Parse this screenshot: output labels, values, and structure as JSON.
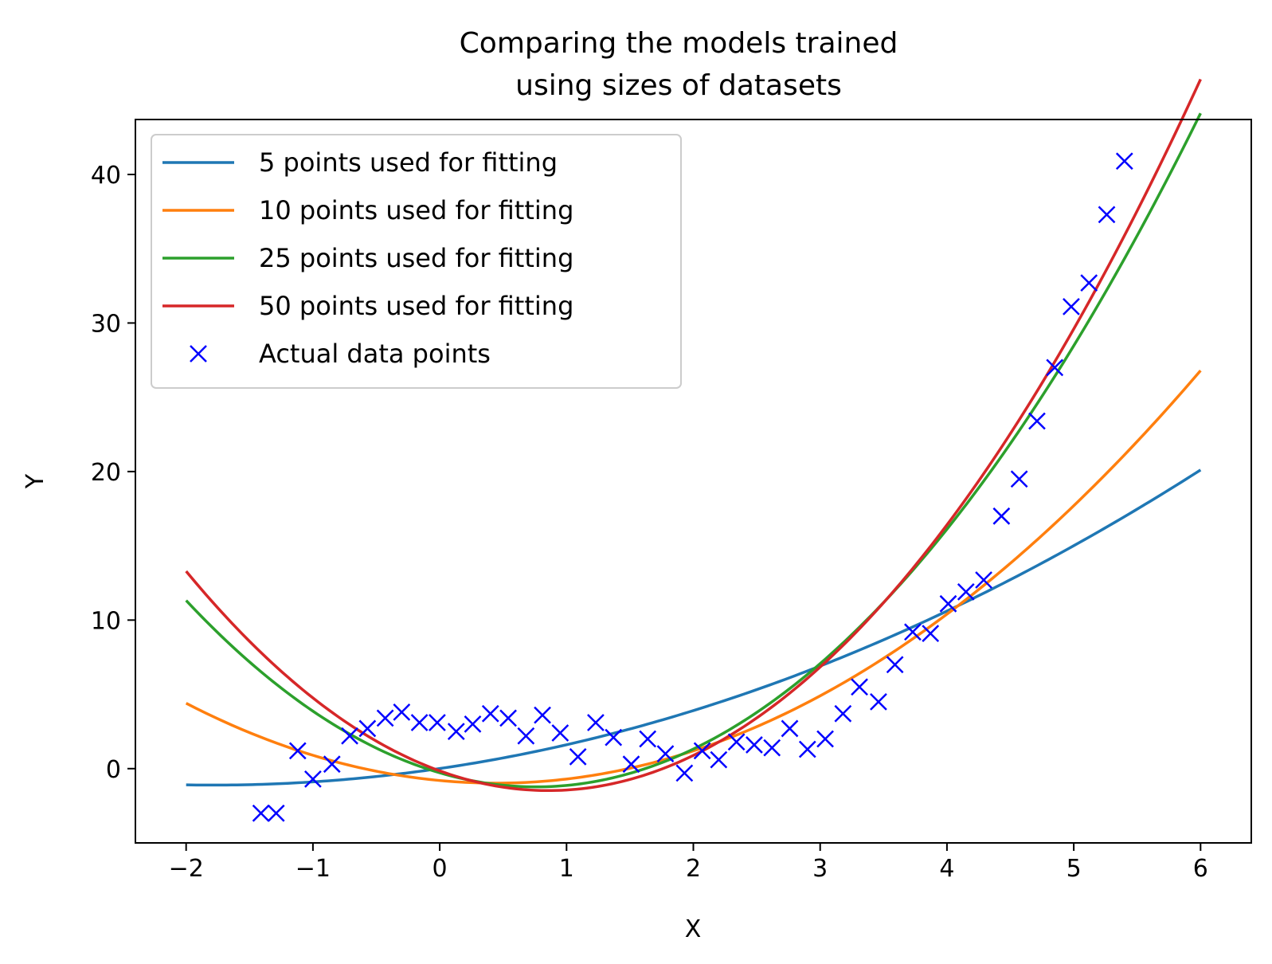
{
  "chart_data": {
    "type": "line",
    "title_lines": [
      "Comparing the models trained",
      "using sizes of datasets"
    ],
    "xlabel": "X",
    "ylabel": "Y",
    "xlim": [
      -2.4,
      6.4
    ],
    "ylim": [
      -5,
      43.7
    ],
    "xticks": [
      -2,
      -1,
      0,
      1,
      2,
      3,
      4,
      5,
      6
    ],
    "xtick_labels": [
      "−2",
      "−1",
      "0",
      "1",
      "2",
      "3",
      "4",
      "5",
      "6"
    ],
    "yticks": [
      0,
      10,
      20,
      30,
      40
    ],
    "ytick_labels": [
      "0",
      "10",
      "20",
      "30",
      "40"
    ],
    "grid": false,
    "legend_position": "upper-left",
    "curve_x_range": [
      -2,
      6
    ],
    "series": [
      {
        "name": "5 points used for fitting",
        "color": "#1f77b4",
        "kind": "line",
        "coeffs": [
          0.008,
          1.25,
          0.35
        ]
      },
      {
        "name": "10 points used for fitting",
        "color": "#ff7f0e",
        "kind": "line",
        "coeffs": [
          -0.8,
          -0.8,
          0.9
        ]
      },
      {
        "name": "25 points used for fitting",
        "color": "#2ca02c",
        "kind": "line",
        "coeffs": [
          -0.28,
          -2.5,
          1.65
        ]
      },
      {
        "name": "50 points used for fitting",
        "color": "#d62728",
        "kind": "line",
        "coeffs": [
          -0.15,
          -3.1,
          1.81
        ]
      },
      {
        "name": "Actual data points",
        "color": "#0000ff",
        "kind": "marker",
        "marker": "x",
        "x": [
          -1.41,
          -1.29,
          -1.12,
          -1.0,
          -0.85,
          -0.71,
          -0.57,
          -0.43,
          -0.3,
          -0.16,
          -0.02,
          0.13,
          0.26,
          0.4,
          0.54,
          0.68,
          0.81,
          0.95,
          1.09,
          1.23,
          1.37,
          1.51,
          1.64,
          1.78,
          1.93,
          2.07,
          2.2,
          2.34,
          2.48,
          2.62,
          2.76,
          2.9,
          3.04,
          3.18,
          3.31,
          3.46,
          3.59,
          3.73,
          3.87,
          4.01,
          4.15,
          4.29,
          4.43,
          4.57,
          4.71,
          4.85,
          4.98,
          5.12,
          5.26,
          5.4
        ],
        "y": [
          -3.0,
          -3.0,
          1.2,
          -0.7,
          0.3,
          2.2,
          2.7,
          3.4,
          3.8,
          3.1,
          3.1,
          2.5,
          3.0,
          3.7,
          3.4,
          2.2,
          3.6,
          2.4,
          0.8,
          3.1,
          2.1,
          0.3,
          2.0,
          1.0,
          -0.3,
          1.2,
          0.6,
          1.8,
          1.6,
          1.4,
          2.7,
          1.3,
          2.0,
          3.7,
          5.5,
          4.5,
          7.0,
          9.2,
          9.1,
          11.1,
          11.9,
          12.7,
          17.0,
          19.5,
          23.4,
          27.0,
          31.1,
          32.7,
          37.3,
          40.9
        ]
      }
    ]
  }
}
